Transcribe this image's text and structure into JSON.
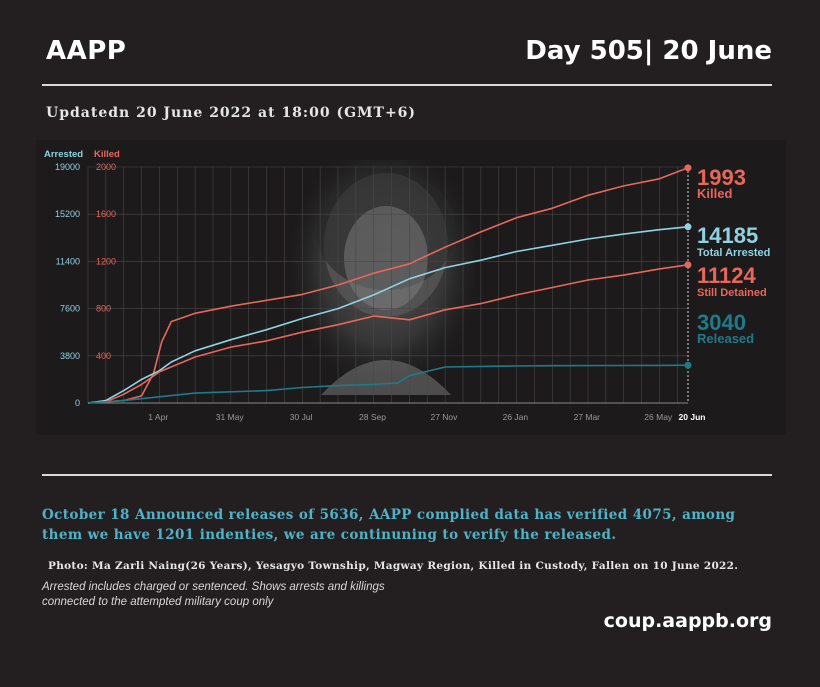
{
  "header": {
    "brand": "AAPP",
    "day": "Day 505| 20 June",
    "updated": "Updatedn 20 June 2022 at 18:00 (GMT+6)"
  },
  "chart_data": {
    "type": "line",
    "axis_left_title": "Arrested",
    "axis_right_title": "Killed",
    "y_arrested_ticks": [
      "19000",
      "15200",
      "11400",
      "7600",
      "3800",
      "0"
    ],
    "y_killed_ticks": [
      "2000",
      "1600",
      "1200",
      "800",
      "400"
    ],
    "ylim_arrested": [
      0,
      19000
    ],
    "ylim_killed": [
      0,
      2000
    ],
    "x_ticks": [
      "1 Apr",
      "31 May",
      "30 Jul",
      "28 Sep",
      "27 Nov",
      "26 Jan",
      "27 Mar",
      "26 May",
      "20 Jun"
    ],
    "x_tick_days": [
      59,
      119,
      179,
      239,
      299,
      359,
      419,
      479,
      504
    ],
    "xlim_days": [
      0,
      504
    ],
    "series": [
      {
        "name": "Killed",
        "axis": "killed",
        "color": "#e8675c",
        "value_label": "1993",
        "days": [
          0,
          30,
          45,
          55,
          62,
          70,
          90,
          120,
          150,
          180,
          210,
          240,
          270,
          300,
          330,
          360,
          390,
          420,
          450,
          480,
          504
        ],
        "values": [
          0,
          20,
          60,
          250,
          520,
          690,
          760,
          820,
          870,
          920,
          1000,
          1100,
          1180,
          1320,
          1450,
          1570,
          1650,
          1760,
          1840,
          1900,
          1993
        ]
      },
      {
        "name": "Total Arrested",
        "axis": "arrested",
        "color": "#8fd3e3",
        "value_label": "14185",
        "days": [
          0,
          15,
          30,
          45,
          60,
          70,
          90,
          120,
          150,
          180,
          210,
          240,
          270,
          300,
          330,
          360,
          390,
          420,
          450,
          480,
          504
        ],
        "values": [
          0,
          200,
          1000,
          1900,
          2600,
          3300,
          4200,
          5100,
          5900,
          6800,
          7600,
          8700,
          10000,
          10900,
          11500,
          12200,
          12700,
          13200,
          13600,
          13950,
          14185
        ]
      },
      {
        "name": "Still Detained",
        "axis": "arrested",
        "color": "#e8675c",
        "value_label": "11124",
        "days": [
          0,
          15,
          30,
          45,
          60,
          90,
          120,
          150,
          180,
          210,
          240,
          270,
          300,
          330,
          360,
          390,
          420,
          450,
          480,
          504
        ],
        "values": [
          0,
          100,
          700,
          1500,
          2500,
          3700,
          4500,
          5000,
          5700,
          6300,
          7000,
          6700,
          7500,
          8000,
          8700,
          9300,
          9900,
          10300,
          10800,
          11124
        ]
      },
      {
        "name": "Released",
        "axis": "arrested",
        "color": "#1f7a8c",
        "value_label": "3040",
        "days": [
          0,
          30,
          60,
          90,
          120,
          150,
          180,
          210,
          240,
          260,
          270,
          300,
          330,
          360,
          390,
          420,
          450,
          480,
          504
        ],
        "values": [
          0,
          200,
          500,
          800,
          900,
          1000,
          1250,
          1400,
          1500,
          1600,
          2200,
          2900,
          2950,
          2980,
          3000,
          3010,
          3020,
          3030,
          3040
        ]
      }
    ]
  },
  "notes": {
    "announcement": "October 18 Announced releases of 5636, AAPP complied data has verified 4075, among them we have 1201 indenties, we are continuning to verify the released.",
    "photo": "Photo:  Ma Zarli Naing(26 Years), Yesagyo Township, Magway Region, Killed in Custody, Fallen on 10 June 2022.",
    "footnote": "Arrested includes charged or sentenced. Shows arrests and killings connected to the attempted military coup only",
    "website": "coup.aappb.org"
  }
}
